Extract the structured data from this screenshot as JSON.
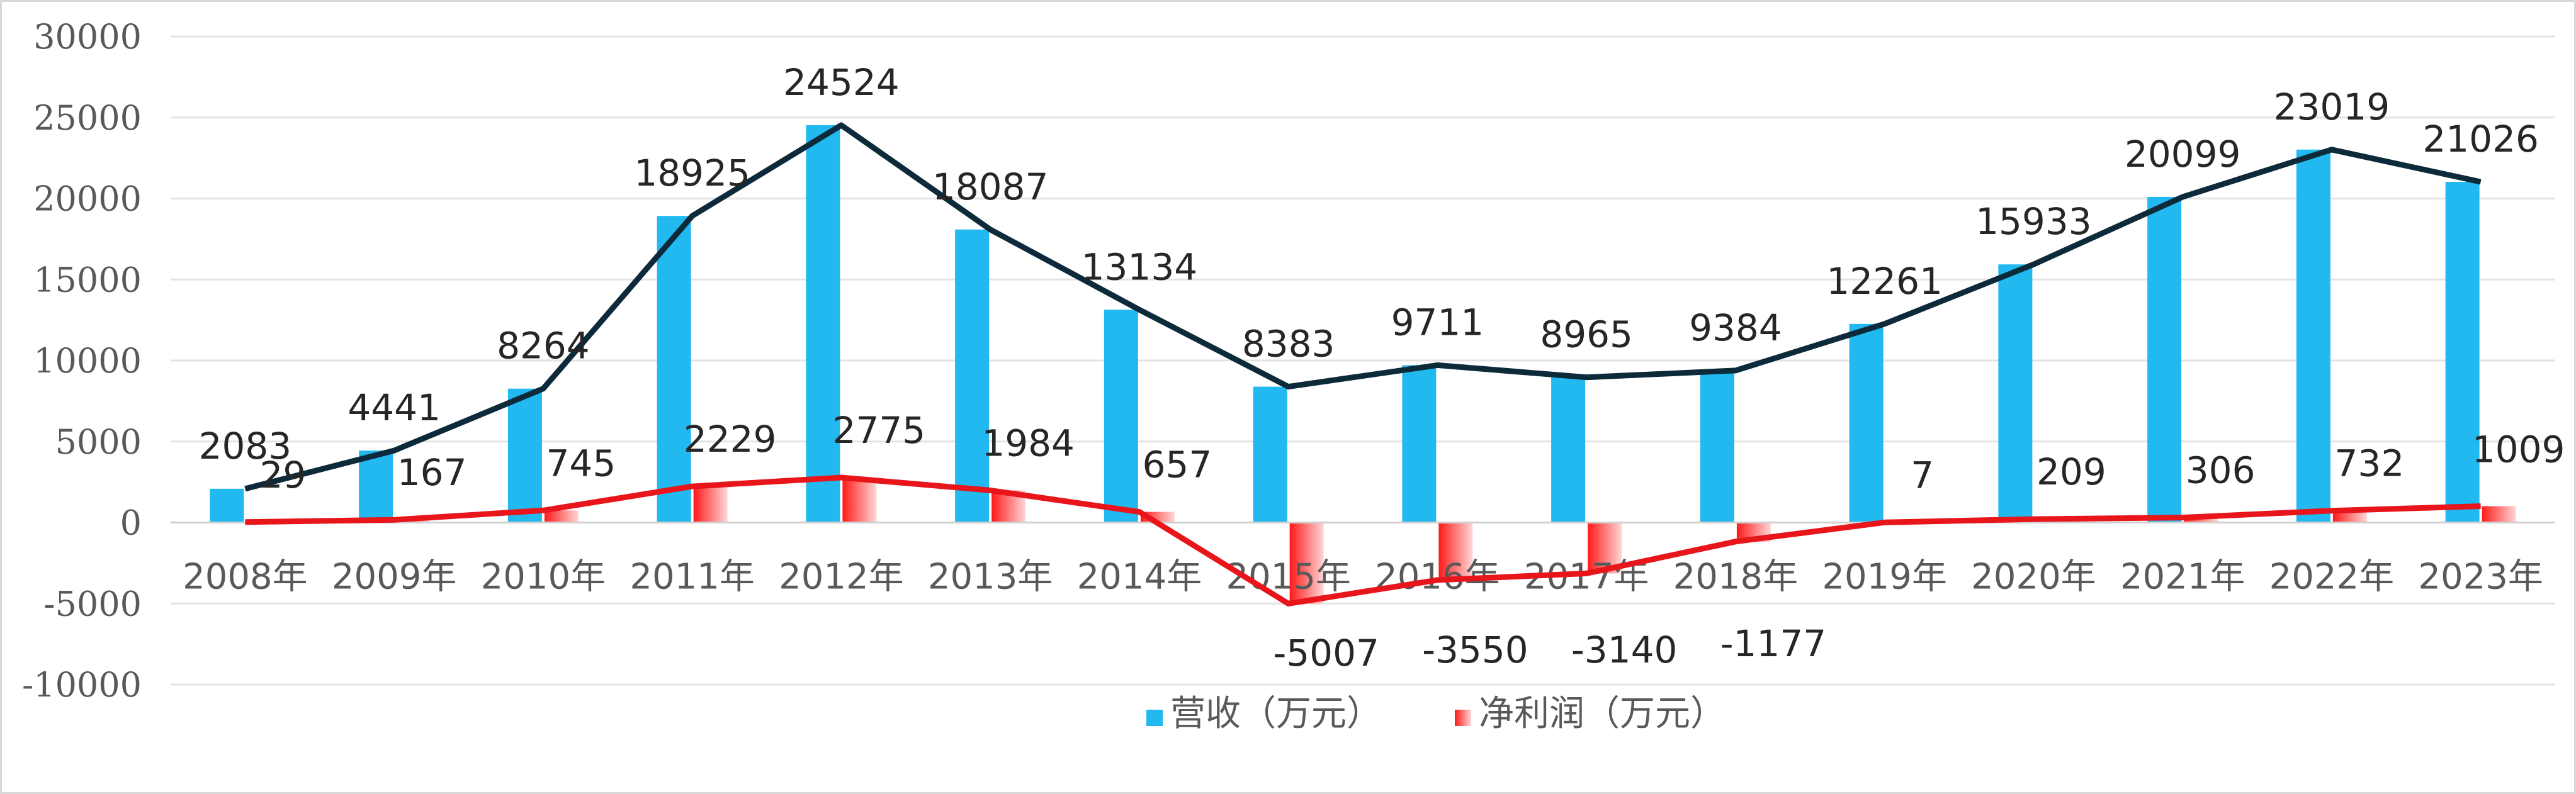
{
  "chart_data": {
    "type": "bar",
    "categories": [
      "2008年",
      "2009年",
      "2010年",
      "2011年",
      "2012年",
      "2013年",
      "2014年",
      "2015年",
      "2016年",
      "2017年",
      "2018年",
      "2019年",
      "2020年",
      "2021年",
      "2022年",
      "2023年"
    ],
    "series": [
      {
        "name": "营收（万元）",
        "kind": "bar+line",
        "color": "#22b8f0",
        "line_color": "#0d2a3a",
        "values": [
          2083,
          4441,
          8264,
          18925,
          24524,
          18087,
          13134,
          8383,
          9711,
          8965,
          9384,
          12261,
          15933,
          20099,
          23019,
          21026
        ]
      },
      {
        "name": "净利润（万元）",
        "kind": "bar+line",
        "color": "#ff1a1a",
        "line_color": "#e8151b",
        "values": [
          29,
          167,
          745,
          2229,
          2775,
          1984,
          657,
          -5007,
          -3550,
          -3140,
          -1177,
          7,
          209,
          306,
          732,
          1009
        ]
      }
    ],
    "ylim": [
      -10000,
      30000
    ],
    "yticks": [
      "30000",
      "25000",
      "20000",
      "15000",
      "10000",
      "5000",
      "0",
      "-5000",
      "-10000"
    ],
    "grid": true,
    "legend_position": "bottom"
  }
}
